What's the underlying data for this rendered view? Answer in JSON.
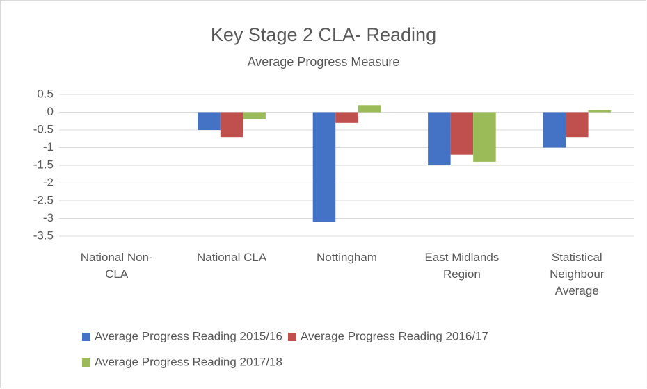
{
  "chart_data": {
    "type": "bar",
    "title": "Key Stage 2 CLA- Reading",
    "subtitle": "Average Progress Measure",
    "categories": [
      "National Non-CLA",
      "National CLA",
      "Nottingham",
      "East Midlands Region",
      "Statistical Neighbour Average"
    ],
    "series": [
      {
        "name": "Average Progress Reading 2015/16",
        "color": "#4472c4",
        "values": [
          0,
          -0.5,
          -3.1,
          -1.5,
          -1.0
        ]
      },
      {
        "name": "Average Progress Reading 2016/17",
        "color": "#c0504d",
        "values": [
          0,
          -0.7,
          -0.3,
          -1.2,
          -0.7
        ]
      },
      {
        "name": "Average Progress Reading 2017/18",
        "color": "#9bbb59",
        "values": [
          0,
          -0.2,
          0.2,
          -1.4,
          0.05
        ]
      }
    ],
    "ylim": [
      -3.5,
      0.5
    ],
    "yticks": [
      -3.5,
      -3,
      -2.5,
      -2,
      -1.5,
      -1,
      -0.5,
      0,
      0.5
    ],
    "grid": true,
    "legend": "bottom"
  }
}
